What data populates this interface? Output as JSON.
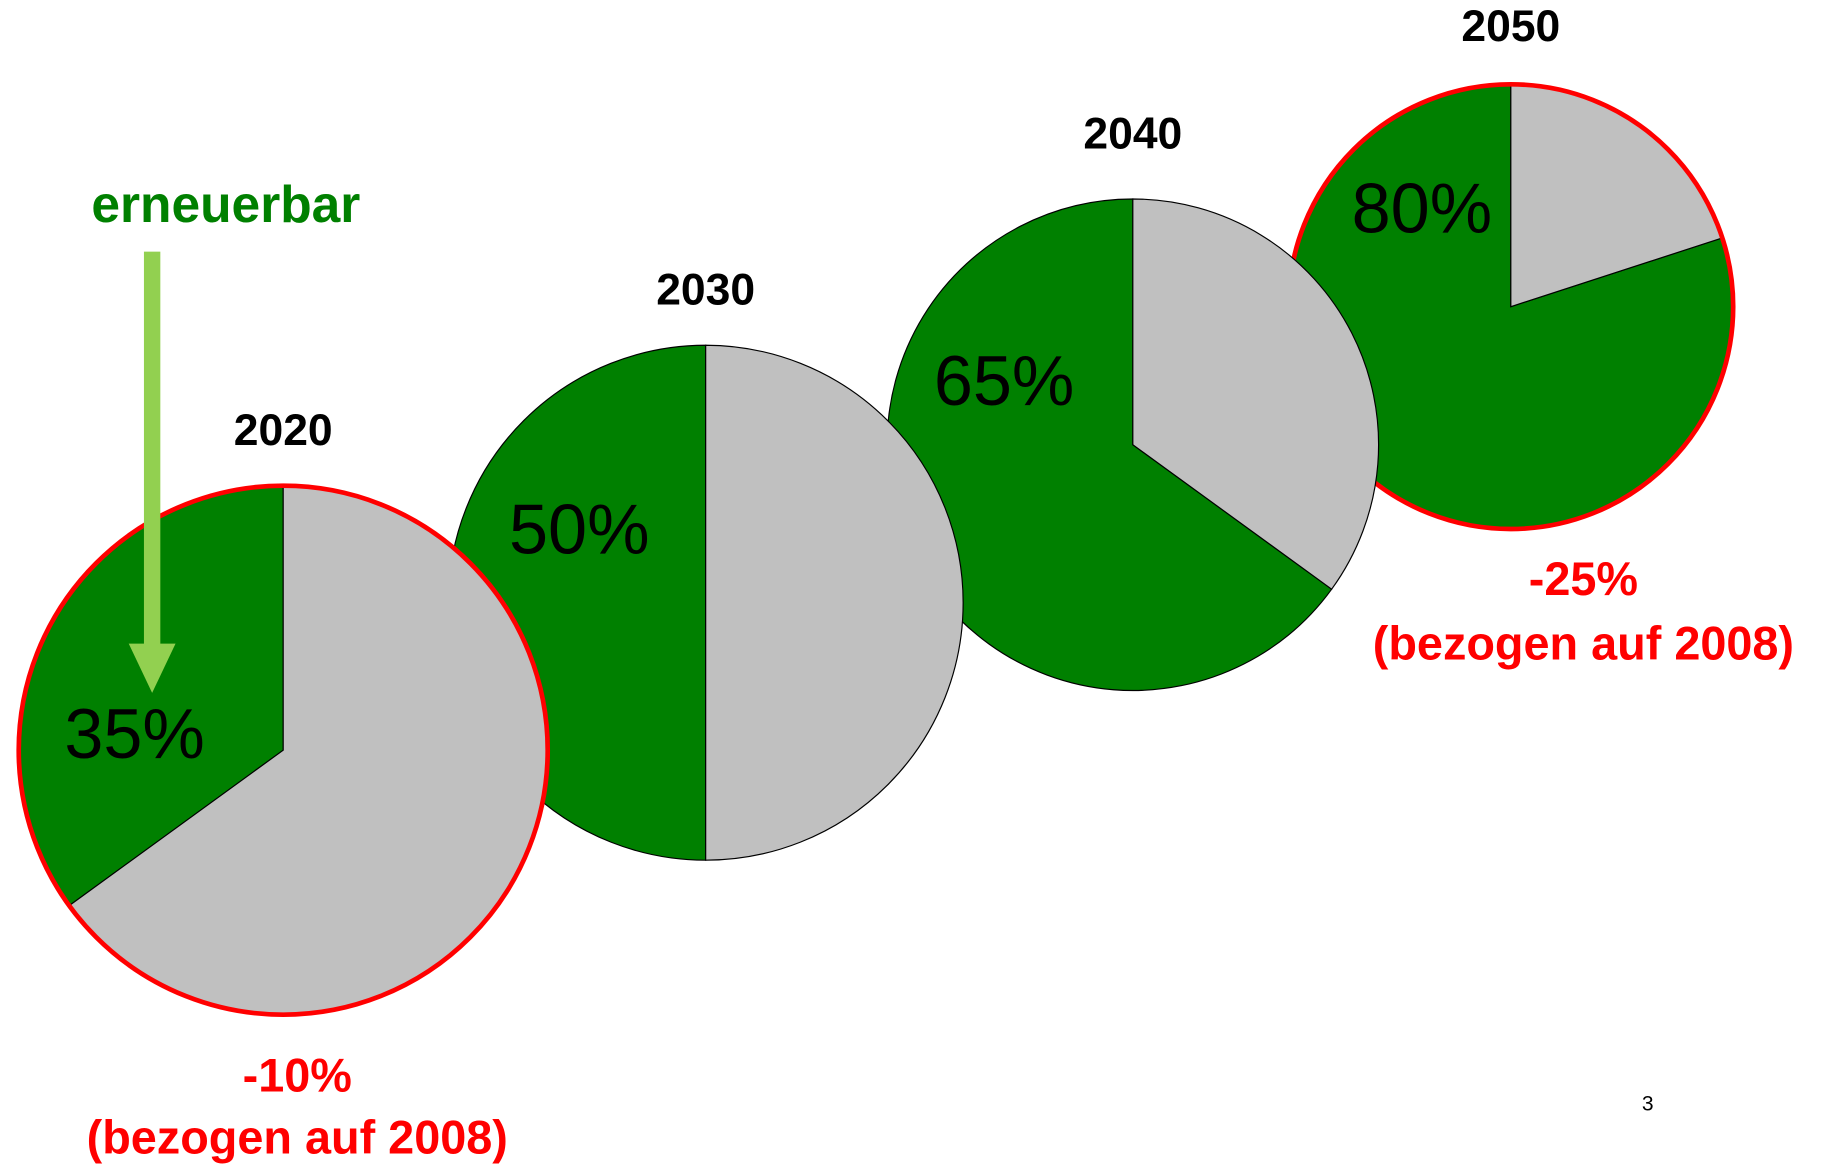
{
  "chart_data": [
    {
      "type": "pie",
      "title": "2020",
      "values": [
        35,
        65
      ],
      "value_labels": [
        "35%",
        null
      ],
      "colors": [
        "#008000",
        "#c0c0c0"
      ],
      "highlight_color": "#ff0000",
      "annotation": [
        "-10%",
        "(bezogen auf 2008)"
      ]
    },
    {
      "type": "pie",
      "title": "2030",
      "values": [
        50,
        50
      ],
      "value_labels": [
        "50%",
        null
      ],
      "colors": [
        "#008000",
        "#c0c0c0"
      ]
    },
    {
      "type": "pie",
      "title": "2040",
      "values": [
        65,
        35
      ],
      "value_labels": [
        "65%",
        null
      ],
      "colors": [
        "#008000",
        "#c0c0c0"
      ]
    },
    {
      "type": "pie",
      "title": "2050",
      "values": [
        80,
        20
      ],
      "value_labels": [
        "80%",
        null
      ],
      "colors": [
        "#008000",
        "#c0c0c0"
      ],
      "highlight_color": "#ff0000",
      "annotation": [
        "-25%",
        "(bezogen auf 2008)"
      ]
    }
  ],
  "pointer_label": "erneuerbar",
  "page_number": "3"
}
